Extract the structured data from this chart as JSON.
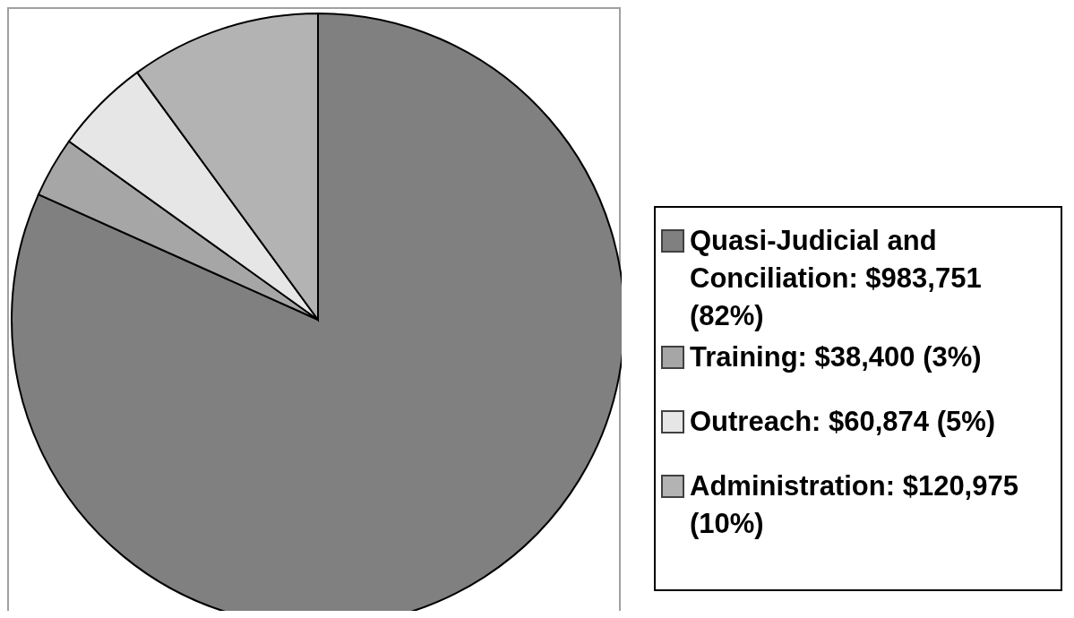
{
  "chart_data": {
    "type": "pie",
    "categories": [
      "Quasi-Judicial and Conciliation: $983,751 (82%)",
      "Training: $38,400 (3%)",
      "Outreach: $60,874 (5%)",
      "Administration: $120,975 (10%)"
    ],
    "values": [
      983751,
      38400,
      60874,
      120975
    ],
    "colors": [
      "#808080",
      "#a6a6a6",
      "#e6e6e6",
      "#b3b3b3"
    ],
    "legend": "right"
  }
}
